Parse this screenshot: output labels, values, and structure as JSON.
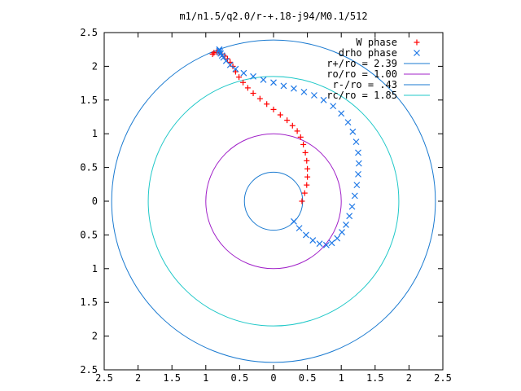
{
  "chart_data": {
    "type": "scatter",
    "title": "m1/n1.5/q2.0/r-+.18-j94/M0.1/512",
    "xlabel": "",
    "ylabel": "",
    "xlim": [
      -2.5,
      2.5
    ],
    "ylim": [
      -2.5,
      2.5
    ],
    "grid": false,
    "legend_position": "top-right",
    "x_ticks": [
      -2.5,
      -2,
      -1.5,
      -1,
      -0.5,
      0,
      0.5,
      1,
      1.5,
      2,
      2.5
    ],
    "y_ticks": [
      -2.5,
      -2,
      -1.5,
      -1,
      -0.5,
      0,
      0.5,
      1,
      1.5,
      2,
      2.5
    ],
    "x_tick_labels": [
      "2.5",
      "2",
      "1.5",
      "1",
      "0.5",
      "0",
      "0.5",
      "1",
      "1.5",
      "2",
      "2.5"
    ],
    "y_tick_labels": [
      "2.5",
      "2",
      "1.5",
      "1",
      "0.5",
      "0",
      "0.5",
      "1",
      "1.5",
      "2",
      "2.5"
    ],
    "series": [
      {
        "name": "W phase",
        "kind": "points",
        "marker": "+",
        "color": "#ff0000",
        "x": [
          0.42,
          0.46,
          0.49,
          0.5,
          0.5,
          0.49,
          0.47,
          0.44,
          0.4,
          0.35,
          0.28,
          0.2,
          0.1,
          0.0,
          -0.1,
          -0.2,
          -0.3,
          -0.38,
          -0.45,
          -0.51,
          -0.56,
          -0.6,
          -0.64,
          -0.68,
          -0.72,
          -0.76,
          -0.8,
          -0.84,
          -0.88,
          -0.9
        ],
        "y": [
          0.0,
          0.12,
          0.24,
          0.36,
          0.48,
          0.6,
          0.72,
          0.84,
          0.95,
          1.04,
          1.12,
          1.2,
          1.28,
          1.36,
          1.44,
          1.52,
          1.6,
          1.68,
          1.76,
          1.84,
          1.92,
          2.0,
          2.06,
          2.11,
          2.15,
          2.18,
          2.2,
          2.21,
          2.2,
          2.18
        ]
      },
      {
        "name": "drho phase",
        "kind": "points",
        "marker": "x",
        "color": "#1e78e6",
        "x": [
          0.3,
          0.38,
          0.48,
          0.58,
          0.68,
          0.78,
          0.86,
          0.94,
          1.01,
          1.07,
          1.12,
          1.16,
          1.2,
          1.23,
          1.25,
          1.26,
          1.25,
          1.22,
          1.17,
          1.1,
          1.0,
          0.88,
          0.74,
          0.6,
          0.45,
          0.3,
          0.15,
          0.0,
          -0.15,
          -0.3,
          -0.44,
          -0.56,
          -0.64,
          -0.7,
          -0.74,
          -0.76,
          -0.78,
          -0.79,
          -0.8,
          -0.8
        ],
        "y": [
          -0.3,
          -0.4,
          -0.5,
          -0.58,
          -0.63,
          -0.65,
          -0.62,
          -0.55,
          -0.46,
          -0.35,
          -0.22,
          -0.08,
          0.08,
          0.24,
          0.4,
          0.56,
          0.72,
          0.88,
          1.03,
          1.17,
          1.3,
          1.41,
          1.5,
          1.57,
          1.62,
          1.67,
          1.71,
          1.76,
          1.8,
          1.85,
          1.9,
          1.96,
          2.02,
          2.08,
          2.13,
          2.16,
          2.19,
          2.21,
          2.23,
          2.25
        ]
      },
      {
        "name": "r+/ro = 2.39",
        "kind": "circle",
        "radius": 2.39,
        "color": "#1a7ad0"
      },
      {
        "name": "ro/ro = 1.00",
        "kind": "circle",
        "radius": 1.0,
        "color": "#a020c8"
      },
      {
        "name": "r-/ro = .43",
        "kind": "circle",
        "radius": 0.43,
        "color": "#1a7ad0"
      },
      {
        "name": "rc/ro = 1.85",
        "kind": "circle",
        "radius": 1.85,
        "color": "#20c8c8"
      }
    ]
  }
}
